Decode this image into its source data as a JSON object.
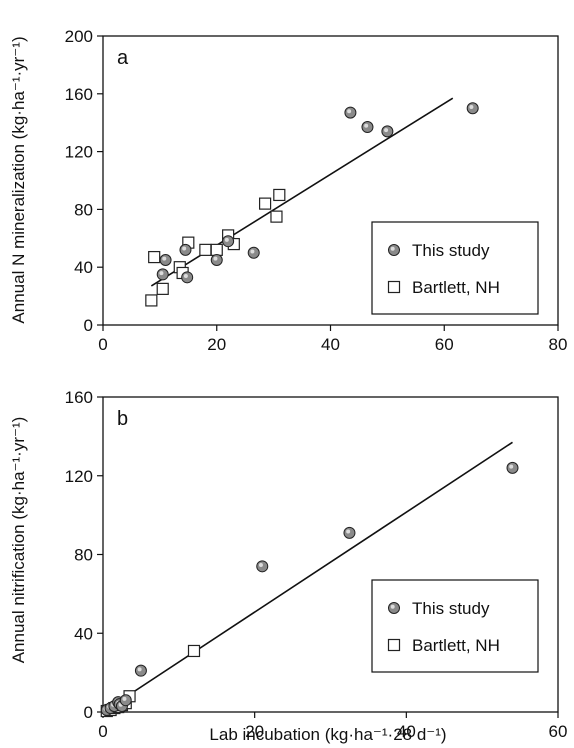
{
  "chart_data": [
    {
      "type": "scatter",
      "panel_label": "a",
      "xlabel": "",
      "ylabel": "Annual N mineralization (kg·ha⁻¹·yr⁻¹)",
      "xlim": [
        0,
        80
      ],
      "ylim": [
        0,
        200
      ],
      "xticks": [
        0,
        20,
        40,
        60,
        80
      ],
      "yticks": [
        0,
        40,
        80,
        120,
        160,
        200
      ],
      "legend_position": "bottom-right",
      "series": [
        {
          "name": "This study",
          "marker": "filled-circle",
          "points": [
            [
              10.5,
              35
            ],
            [
              11,
              45
            ],
            [
              14.5,
              52
            ],
            [
              14.8,
              33
            ],
            [
              20,
              45
            ],
            [
              22,
              58
            ],
            [
              26.5,
              50
            ],
            [
              43.5,
              147
            ],
            [
              46.5,
              137
            ],
            [
              50,
              134
            ],
            [
              65,
              150
            ]
          ]
        },
        {
          "name": "Bartlett, NH",
          "marker": "open-square",
          "points": [
            [
              8.5,
              17
            ],
            [
              9,
              47
            ],
            [
              10.5,
              25
            ],
            [
              13.5,
              40
            ],
            [
              14,
              36
            ],
            [
              15,
              57
            ],
            [
              18,
              52
            ],
            [
              20,
              52
            ],
            [
              22,
              62
            ],
            [
              23,
              56
            ],
            [
              28.5,
              84
            ],
            [
              30.5,
              75
            ],
            [
              31,
              90
            ]
          ]
        }
      ],
      "fit_line": {
        "x": [
          8.5,
          61.5
        ],
        "y": [
          27,
          157
        ]
      }
    },
    {
      "type": "scatter",
      "panel_label": "b",
      "xlabel": "Lab incubation (kg·ha⁻¹·28 d⁻¹)",
      "ylabel": "Annual nitrification (kg·ha⁻¹·yr⁻¹)",
      "xlim": [
        0,
        60
      ],
      "ylim": [
        0,
        160
      ],
      "xticks": [
        0,
        20,
        40,
        60
      ],
      "yticks": [
        0,
        40,
        80,
        120,
        160
      ],
      "legend_position": "bottom-right",
      "series": [
        {
          "name": "This study",
          "marker": "filled-circle",
          "points": [
            [
              0.5,
              1
            ],
            [
              1,
              2
            ],
            [
              1.5,
              3
            ],
            [
              2,
              5
            ],
            [
              2.2,
              4
            ],
            [
              2.5,
              3
            ],
            [
              3,
              6
            ],
            [
              5,
              21
            ],
            [
              21,
              74
            ],
            [
              32.5,
              91
            ],
            [
              54,
              124
            ]
          ]
        },
        {
          "name": "Bartlett, NH",
          "marker": "open-square",
          "points": [
            [
              0.5,
              0.5
            ],
            [
              1,
              1
            ],
            [
              1.5,
              2
            ],
            [
              2,
              2.5
            ],
            [
              2.5,
              3.5
            ],
            [
              3,
              4.5
            ],
            [
              3.5,
              8
            ],
            [
              12,
              31
            ]
          ]
        }
      ],
      "fit_line": {
        "x": [
          0,
          54
        ],
        "y": [
          0,
          137
        ]
      }
    }
  ]
}
